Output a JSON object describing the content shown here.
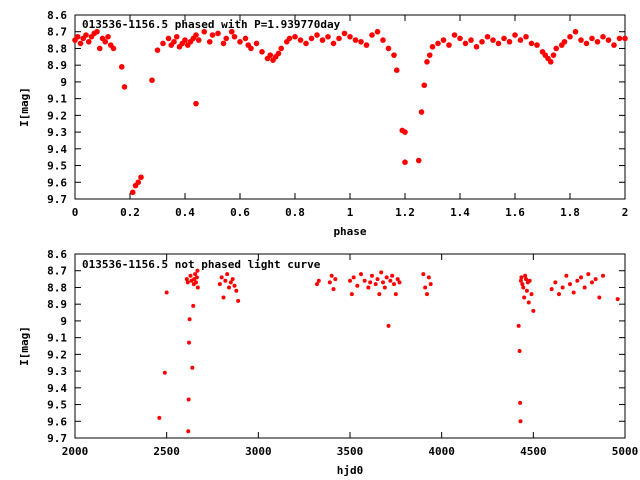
{
  "chart_data": [
    {
      "type": "scatter",
      "title": "013536-1156.5 phased with P=1.939770day",
      "xlabel": "phase",
      "ylabel": "I[mag]",
      "xlim": [
        0,
        2
      ],
      "ylim": [
        8.6,
        9.7
      ],
      "y_inverted": true,
      "x_ticks": [
        "0",
        "0.2",
        "0.4",
        "0.6",
        "0.8",
        "1",
        "1.2",
        "1.4",
        "1.6",
        "1.8",
        "2"
      ],
      "y_ticks": [
        "8.6",
        "8.7",
        "8.8",
        "8.9",
        "9",
        "9.1",
        "9.2",
        "9.3",
        "9.4",
        "9.5",
        "9.6",
        "9.7"
      ],
      "color": "#ff0000",
      "x": [
        0.0,
        0.01,
        0.02,
        0.03,
        0.04,
        0.05,
        0.06,
        0.07,
        0.08,
        0.09,
        0.1,
        0.11,
        0.12,
        0.13,
        0.14,
        0.17,
        0.18,
        0.21,
        0.22,
        0.23,
        0.24,
        0.28,
        0.3,
        0.32,
        0.34,
        0.35,
        0.36,
        0.37,
        0.38,
        0.39,
        0.4,
        0.41,
        0.42,
        0.43,
        0.44,
        0.44,
        0.45,
        0.47,
        0.49,
        0.5,
        0.52,
        0.54,
        0.55,
        0.57,
        0.58,
        0.6,
        0.62,
        0.63,
        0.64,
        0.66,
        0.68,
        0.7,
        0.71,
        0.72,
        0.73,
        0.74,
        0.75,
        0.77,
        0.78,
        0.8,
        0.82,
        0.84,
        0.86,
        0.88,
        0.9,
        0.92,
        0.94,
        0.96,
        0.98,
        1.0,
        1.02,
        1.04,
        1.06,
        1.08,
        1.1,
        1.12,
        1.14,
        1.16,
        1.17,
        1.19,
        1.2,
        1.2,
        1.25,
        1.26,
        1.27,
        1.28,
        1.29,
        1.3,
        1.32,
        1.34,
        1.36,
        1.38,
        1.4,
        1.42,
        1.44,
        1.46,
        1.48,
        1.5,
        1.52,
        1.54,
        1.56,
        1.58,
        1.6,
        1.62,
        1.64,
        1.66,
        1.68,
        1.7,
        1.71,
        1.72,
        1.73,
        1.74,
        1.75,
        1.77,
        1.78,
        1.8,
        1.82,
        1.84,
        1.86,
        1.88,
        1.9,
        1.92,
        1.94,
        1.96,
        1.98,
        2.0
      ],
      "y": [
        8.75,
        8.73,
        8.77,
        8.74,
        8.72,
        8.76,
        8.73,
        8.71,
        8.7,
        8.8,
        8.74,
        8.76,
        8.73,
        8.78,
        8.8,
        8.91,
        9.03,
        9.66,
        9.62,
        9.6,
        9.57,
        8.99,
        8.81,
        8.77,
        8.74,
        8.78,
        8.76,
        8.73,
        8.79,
        8.77,
        8.75,
        8.78,
        8.76,
        8.74,
        9.13,
        8.72,
        8.75,
        8.7,
        8.76,
        8.72,
        8.71,
        8.77,
        8.74,
        8.7,
        8.73,
        8.76,
        8.74,
        8.78,
        8.8,
        8.77,
        8.82,
        8.86,
        8.84,
        8.87,
        8.85,
        8.83,
        8.8,
        8.76,
        8.74,
        8.73,
        8.75,
        8.77,
        8.74,
        8.72,
        8.75,
        8.73,
        8.77,
        8.74,
        8.71,
        8.73,
        8.75,
        8.76,
        8.78,
        8.72,
        8.7,
        8.75,
        8.8,
        8.84,
        8.93,
        9.29,
        9.3,
        9.48,
        9.47,
        9.18,
        9.02,
        8.88,
        8.84,
        8.79,
        8.77,
        8.75,
        8.78,
        8.72,
        8.74,
        8.77,
        8.75,
        8.79,
        8.76,
        8.73,
        8.75,
        8.77,
        8.74,
        8.76,
        8.72,
        8.75,
        8.73,
        8.77,
        8.78,
        8.82,
        8.84,
        8.86,
        8.88,
        8.84,
        8.8,
        8.78,
        8.76,
        8.73,
        8.7,
        8.75,
        8.77,
        8.74,
        8.76,
        8.73,
        8.75,
        8.78,
        8.74,
        8.74
      ]
    },
    {
      "type": "scatter",
      "title": "013536-1156.5 not phased light curve",
      "xlabel": "hjd0",
      "ylabel": "I[mag]",
      "xlim": [
        2000,
        5000
      ],
      "ylim": [
        8.6,
        9.7
      ],
      "y_inverted": true,
      "x_ticks": [
        "2000",
        "2500",
        "3000",
        "3500",
        "4000",
        "4500",
        "5000"
      ],
      "y_ticks": [
        "8.6",
        "8.7",
        "8.8",
        "8.9",
        "9",
        "9.1",
        "9.2",
        "9.3",
        "9.4",
        "9.5",
        "9.6",
        "9.7"
      ],
      "color": "#ff0000",
      "x": [
        2460,
        2490,
        2500,
        2610,
        2615,
        2618,
        2620,
        2622,
        2625,
        2630,
        2635,
        2640,
        2645,
        2648,
        2650,
        2655,
        2660,
        2665,
        2668,
        2670,
        2790,
        2800,
        2810,
        2820,
        2830,
        2840,
        2850,
        2860,
        2870,
        2880,
        2890,
        3320,
        3330,
        3390,
        3400,
        3410,
        3420,
        3500,
        3510,
        3520,
        3540,
        3560,
        3580,
        3600,
        3610,
        3620,
        3640,
        3650,
        3660,
        3670,
        3680,
        3690,
        3700,
        3710,
        3720,
        3730,
        3740,
        3750,
        3760,
        3770,
        3900,
        3910,
        3920,
        3930,
        3940,
        4420,
        4425,
        4428,
        4430,
        4432,
        4435,
        4440,
        4445,
        4450,
        4455,
        4460,
        4465,
        4470,
        4475,
        4480,
        4490,
        4500,
        4600,
        4620,
        4640,
        4660,
        4680,
        4700,
        4720,
        4740,
        4760,
        4780,
        4800,
        4820,
        4840,
        4860,
        4880,
        4960
      ],
      "y": [
        9.58,
        9.31,
        8.83,
        8.75,
        8.77,
        9.66,
        9.47,
        9.13,
        8.99,
        8.73,
        8.76,
        9.28,
        8.91,
        8.78,
        8.75,
        8.72,
        8.77,
        8.74,
        8.7,
        8.8,
        8.78,
        8.74,
        8.86,
        8.76,
        8.72,
        8.8,
        8.77,
        8.75,
        8.79,
        8.82,
        8.88,
        8.78,
        8.76,
        8.77,
        8.73,
        8.81,
        8.75,
        8.76,
        8.84,
        8.74,
        8.79,
        8.72,
        8.76,
        8.8,
        8.77,
        8.73,
        8.78,
        8.75,
        8.84,
        8.71,
        8.77,
        8.8,
        8.74,
        9.03,
        8.76,
        8.73,
        8.78,
        8.84,
        8.75,
        8.77,
        8.72,
        8.8,
        8.84,
        8.74,
        8.78,
        9.03,
        9.18,
        9.49,
        9.6,
        8.76,
        8.74,
        8.78,
        8.8,
        8.86,
        8.73,
        8.75,
        8.82,
        8.77,
        8.89,
        8.76,
        8.84,
        8.94,
        8.81,
        8.77,
        8.84,
        8.8,
        8.73,
        8.78,
        8.83,
        8.76,
        8.74,
        8.8,
        8.72,
        8.77,
        8.75,
        8.86,
        8.73,
        8.87
      ]
    }
  ]
}
